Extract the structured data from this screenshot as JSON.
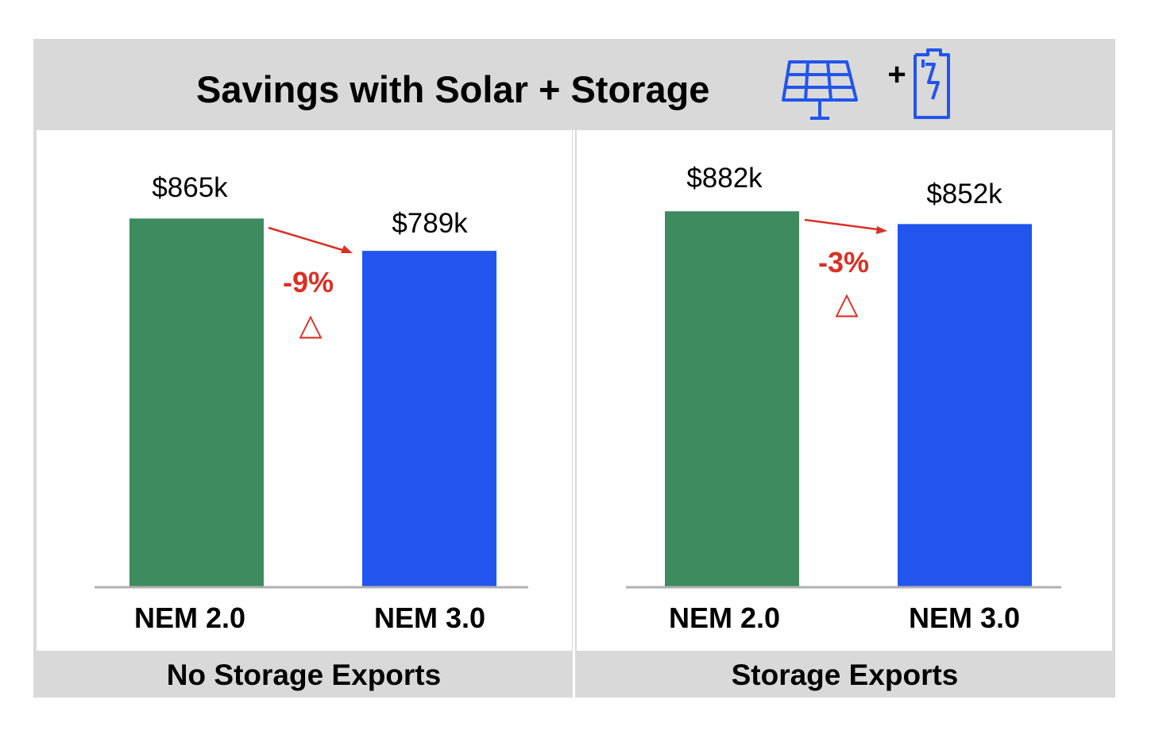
{
  "header": {
    "title": "Savings with Solar + Storage",
    "plus": "+",
    "icons": [
      "solar-panel-icon",
      "battery-icon"
    ]
  },
  "colors": {
    "nem20": "#3d8b5e",
    "nem30": "#2255ee",
    "change": "#d93025",
    "frame": "#d9d9d9",
    "axis": "#b0b0b0"
  },
  "chart_data": [
    {
      "type": "bar",
      "panel_label": "No Storage Exports",
      "categories": [
        "NEM 2.0",
        "NEM 3.0"
      ],
      "values": [
        865,
        789
      ],
      "value_labels": [
        "$865k",
        "$789k"
      ],
      "change_label": "-9%",
      "change_symbol": "△",
      "ylim": [
        0,
        1000
      ]
    },
    {
      "type": "bar",
      "panel_label": "Storage Exports",
      "categories": [
        "NEM 2.0",
        "NEM 3.0"
      ],
      "values": [
        882,
        852
      ],
      "value_labels": [
        "$882k",
        "$852k"
      ],
      "change_label": "-3%",
      "change_symbol": "△",
      "ylim": [
        0,
        1000
      ]
    }
  ]
}
